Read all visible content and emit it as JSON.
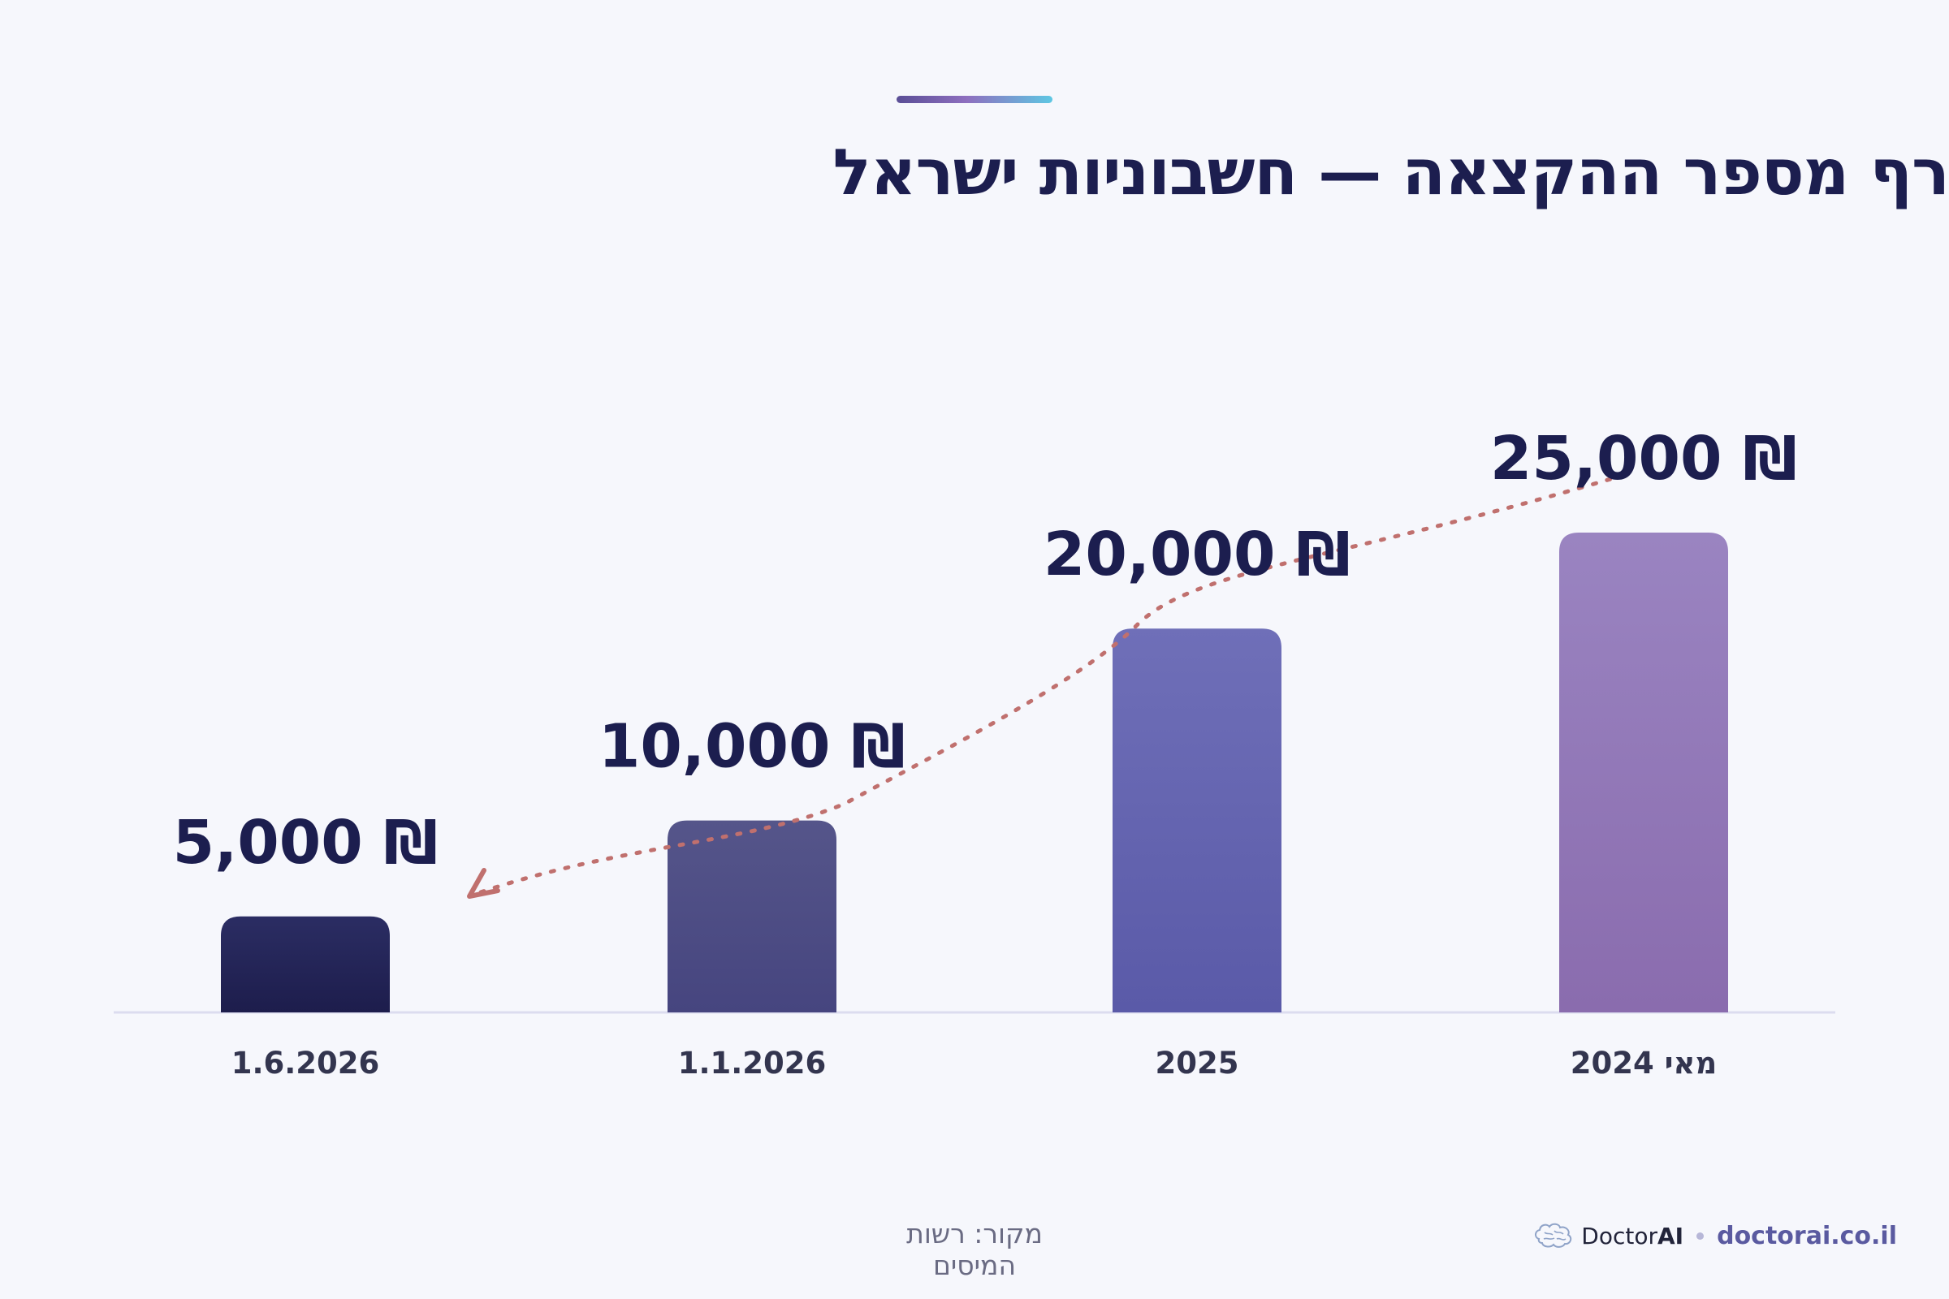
{
  "title": "רף מספר ההקצאה — חשבוניות ישראל",
  "chart_data": {
    "type": "bar",
    "categories": [
      "1.6.2026",
      "1.1.2026",
      "2025",
      "מאי 2024"
    ],
    "values": [
      5000,
      10000,
      20000,
      25000
    ],
    "value_labels": [
      "₪ 5,000",
      "₪ 10,000",
      "₪ 20,000",
      "₪ 25,000"
    ],
    "ylim": [
      0,
      25000
    ],
    "grid": false,
    "annotation": "dotted trend arrow pointing down-left toward the lowest bar",
    "colors": [
      "#22244f",
      "#4a4a82",
      "#6466b2",
      "#9a7dbb"
    ],
    "accent_color": "#c0706e"
  },
  "footer": {
    "source": "מקור: רשות המיסים",
    "brand_name_regular": "Doctor",
    "brand_name_bold": "AI",
    "url": "doctorai.co.il"
  }
}
